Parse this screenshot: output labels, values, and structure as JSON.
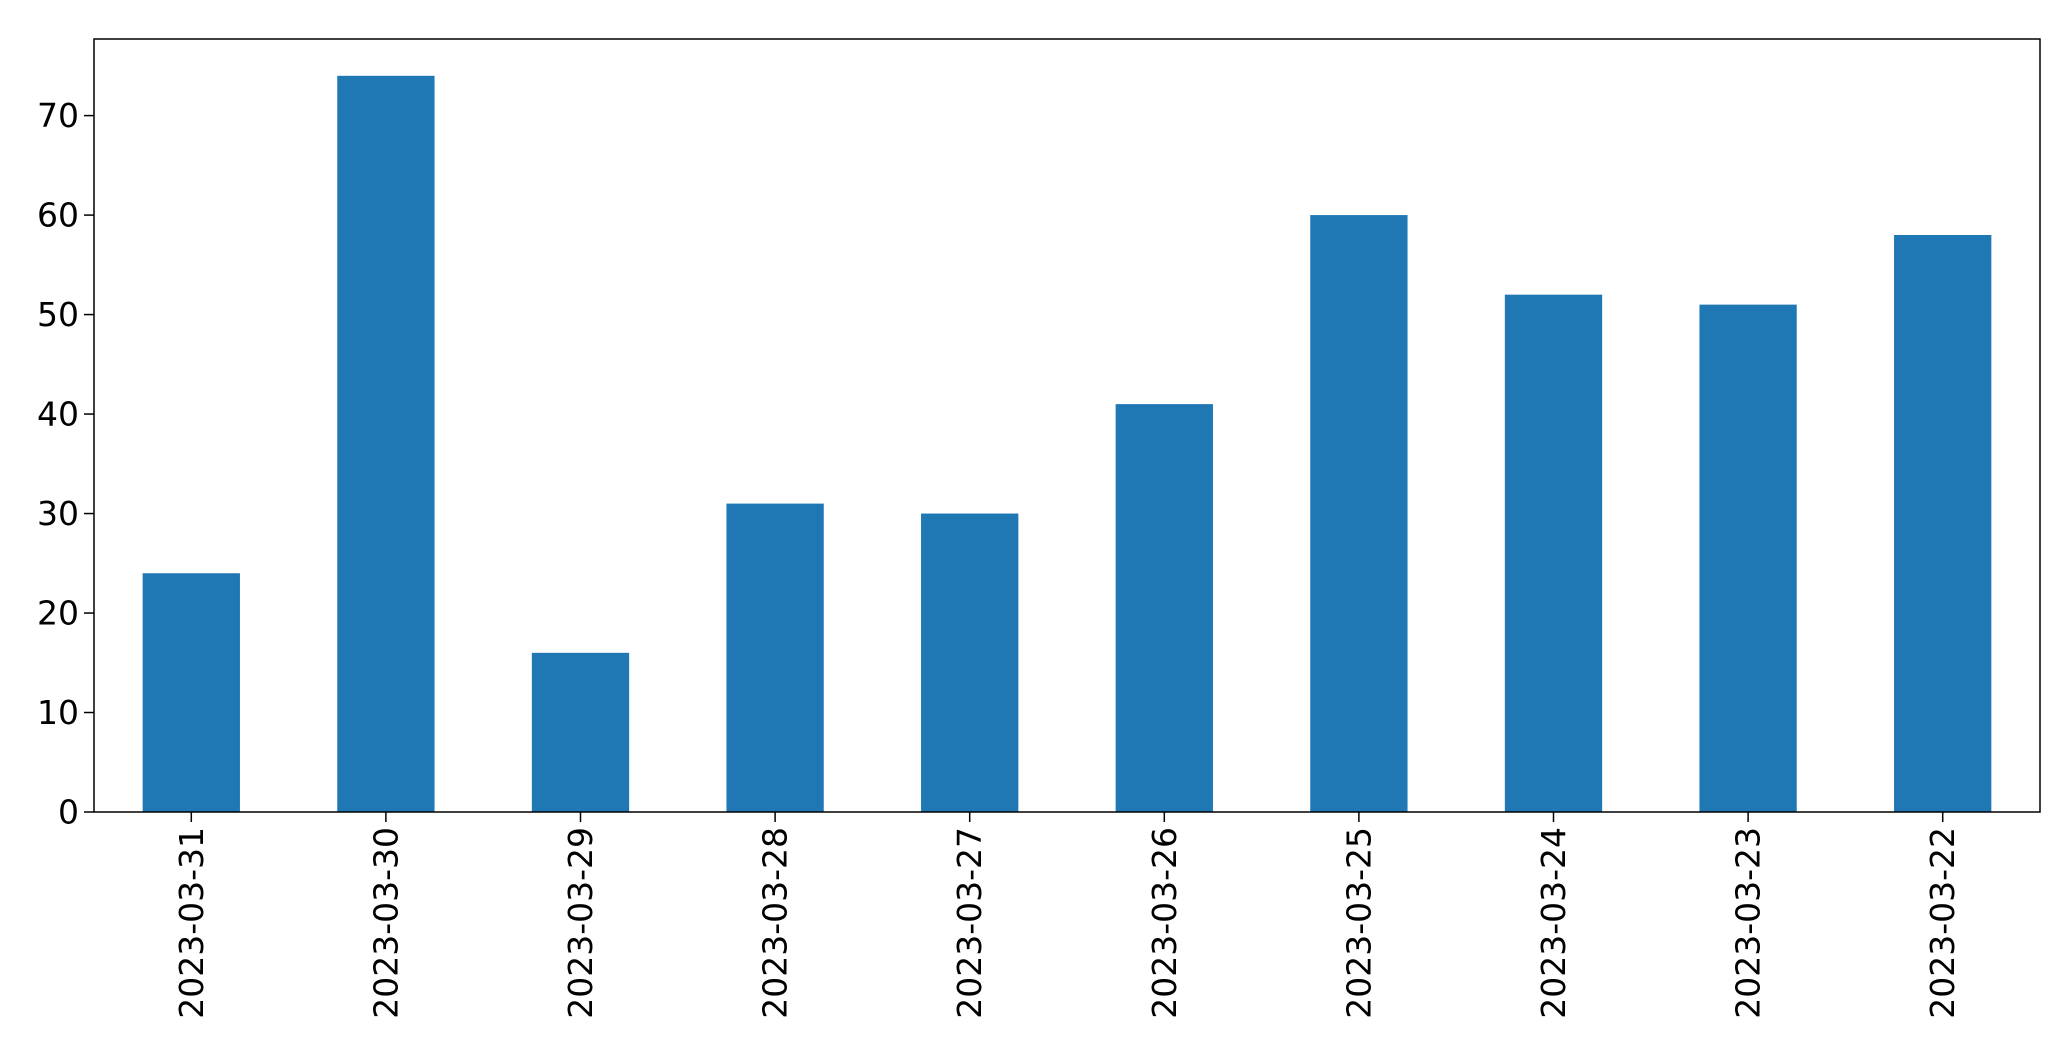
{
  "chart_data": {
    "type": "bar",
    "title": "",
    "xlabel": "",
    "ylabel": "",
    "categories": [
      "2023-03-31",
      "2023-03-30",
      "2023-03-29",
      "2023-03-28",
      "2023-03-27",
      "2023-03-26",
      "2023-03-25",
      "2023-03-24",
      "2023-03-23",
      "2023-03-22"
    ],
    "values": [
      24,
      74,
      16,
      31,
      30,
      41,
      60,
      52,
      51,
      58
    ],
    "ylim": [
      0,
      77.7
    ],
    "yticks": [
      0,
      10,
      20,
      30,
      40,
      50,
      60,
      70
    ],
    "bar_color": "#1f77b4",
    "grid": false,
    "legend": "none"
  }
}
